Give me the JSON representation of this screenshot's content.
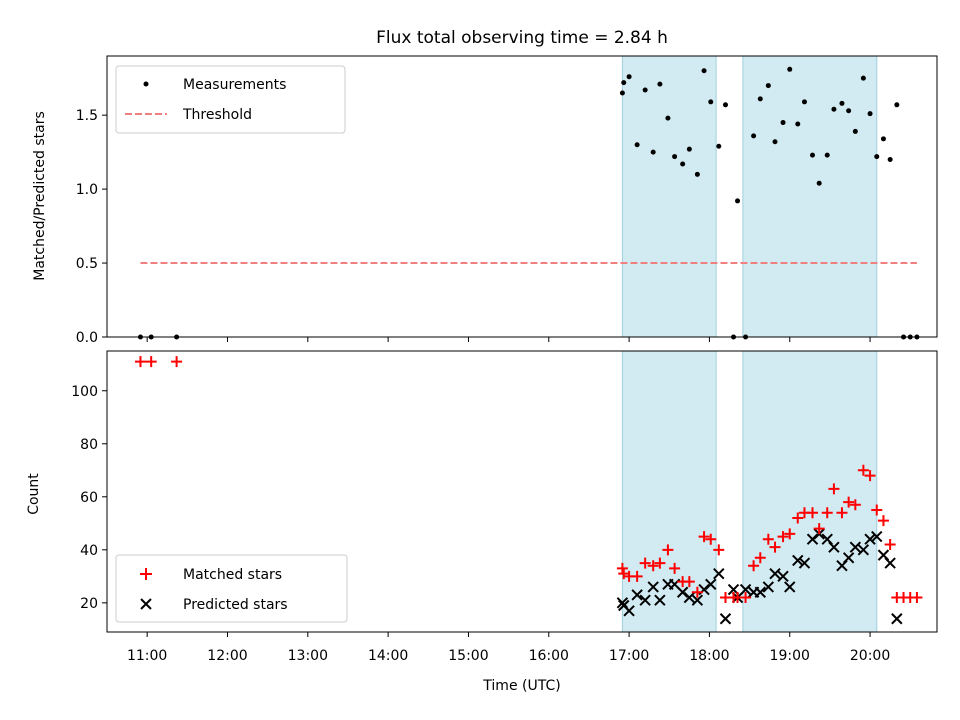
{
  "title": "Flux total observing time = 2.84 h",
  "colors": {
    "measurement": "#000000",
    "threshold": "#f08080",
    "matched": "#ff0000",
    "predicted": "#000000",
    "shade": "#add8e6"
  },
  "chart_data": [
    {
      "type": "scatter",
      "ylabel": "Matched/Predicted stars",
      "xlim": [
        "10:30",
        "20:50"
      ],
      "ylim": [
        0,
        1.9
      ],
      "yticks": [
        0.0,
        0.5,
        1.0,
        1.5
      ],
      "ytick_labels": [
        "0.0",
        "0.5",
        "1.0",
        "1.5"
      ],
      "legend_position": "upper-left",
      "shaded_intervals": [
        [
          "16:55",
          "18:05"
        ],
        [
          "18:25",
          "20:05"
        ]
      ],
      "series": [
        {
          "name": "Measurements",
          "marker": "dot",
          "points": [
            [
              "10:55",
              0.0
            ],
            [
              "11:03",
              0.0
            ],
            [
              "11:22",
              0.0
            ],
            [
              "16:55",
              1.65
            ],
            [
              "16:56",
              1.72
            ],
            [
              "17:00",
              1.76
            ],
            [
              "17:06",
              1.3
            ],
            [
              "17:12",
              1.67
            ],
            [
              "17:18",
              1.25
            ],
            [
              "17:23",
              1.71
            ],
            [
              "17:29",
              1.48
            ],
            [
              "17:34",
              1.22
            ],
            [
              "17:40",
              1.17
            ],
            [
              "17:45",
              1.27
            ],
            [
              "17:51",
              1.1
            ],
            [
              "17:56",
              1.8
            ],
            [
              "18:01",
              1.59
            ],
            [
              "18:07",
              1.29
            ],
            [
              "18:12",
              1.57
            ],
            [
              "18:18",
              0.0
            ],
            [
              "18:21",
              0.92
            ],
            [
              "18:27",
              0.0
            ],
            [
              "18:33",
              1.36
            ],
            [
              "18:38",
              1.61
            ],
            [
              "18:44",
              1.7
            ],
            [
              "18:49",
              1.32
            ],
            [
              "18:55",
              1.45
            ],
            [
              "19:00",
              1.81
            ],
            [
              "19:06",
              1.44
            ],
            [
              "19:11",
              1.59
            ],
            [
              "19:17",
              1.23
            ],
            [
              "19:22",
              1.04
            ],
            [
              "19:28",
              1.23
            ],
            [
              "19:33",
              1.54
            ],
            [
              "19:39",
              1.58
            ],
            [
              "19:44",
              1.53
            ],
            [
              "19:49",
              1.39
            ],
            [
              "19:55",
              1.75
            ],
            [
              "20:00",
              1.51
            ],
            [
              "20:05",
              1.22
            ],
            [
              "20:10",
              1.34
            ],
            [
              "20:15",
              1.2
            ],
            [
              "20:20",
              1.57
            ],
            [
              "20:25",
              0.0
            ],
            [
              "20:30",
              0.0
            ],
            [
              "20:35",
              0.0
            ]
          ]
        },
        {
          "name": "Threshold",
          "line": "dashed",
          "points": [
            [
              "10:55",
              0.5
            ],
            [
              "20:35",
              0.5
            ]
          ]
        }
      ]
    },
    {
      "type": "scatter",
      "xlabel": "Time (UTC)",
      "ylabel": "Count",
      "xlim": [
        "10:30",
        "20:50"
      ],
      "ylim": [
        9,
        115
      ],
      "xticks": [
        "11:00",
        "12:00",
        "13:00",
        "14:00",
        "15:00",
        "16:00",
        "17:00",
        "18:00",
        "19:00",
        "20:00"
      ],
      "yticks": [
        20,
        40,
        60,
        80,
        100
      ],
      "legend_position": "lower-left",
      "shaded_intervals": [
        [
          "16:55",
          "18:05"
        ],
        [
          "18:25",
          "20:05"
        ]
      ],
      "series": [
        {
          "name": "Matched stars",
          "marker": "plus",
          "points": [
            [
              "10:55",
              111
            ],
            [
              "11:03",
              111
            ],
            [
              "11:22",
              111
            ],
            [
              "16:55",
              33
            ],
            [
              "16:56",
              31
            ],
            [
              "17:00",
              30
            ],
            [
              "17:06",
              30
            ],
            [
              "17:12",
              35
            ],
            [
              "17:18",
              34
            ],
            [
              "17:23",
              35
            ],
            [
              "17:29",
              40
            ],
            [
              "17:34",
              33
            ],
            [
              "17:40",
              28
            ],
            [
              "17:45",
              28
            ],
            [
              "17:51",
              24
            ],
            [
              "17:56",
              45
            ],
            [
              "18:01",
              44
            ],
            [
              "18:07",
              40
            ],
            [
              "18:12",
              22
            ],
            [
              "18:18",
              22
            ],
            [
              "18:21",
              22
            ],
            [
              "18:27",
              22
            ],
            [
              "18:33",
              34
            ],
            [
              "18:38",
              37
            ],
            [
              "18:44",
              44
            ],
            [
              "18:49",
              41
            ],
            [
              "18:55",
              45
            ],
            [
              "19:00",
              46
            ],
            [
              "19:06",
              52
            ],
            [
              "19:11",
              54
            ],
            [
              "19:17",
              54
            ],
            [
              "19:22",
              48
            ],
            [
              "19:28",
              54
            ],
            [
              "19:33",
              63
            ],
            [
              "19:39",
              54
            ],
            [
              "19:44",
              58
            ],
            [
              "19:49",
              57
            ],
            [
              "19:55",
              70
            ],
            [
              "20:00",
              68
            ],
            [
              "20:05",
              55
            ],
            [
              "20:10",
              51
            ],
            [
              "20:15",
              42
            ],
            [
              "20:20",
              22
            ],
            [
              "20:25",
              22
            ],
            [
              "20:30",
              22
            ],
            [
              "20:35",
              22
            ]
          ]
        },
        {
          "name": "Predicted stars",
          "marker": "x",
          "points": [
            [
              "16:55",
              20
            ],
            [
              "16:56",
              19
            ],
            [
              "17:00",
              17
            ],
            [
              "17:06",
              23
            ],
            [
              "17:12",
              21
            ],
            [
              "17:18",
              26
            ],
            [
              "17:23",
              21
            ],
            [
              "17:29",
              27
            ],
            [
              "17:34",
              27
            ],
            [
              "17:40",
              24
            ],
            [
              "17:45",
              22
            ],
            [
              "17:51",
              21
            ],
            [
              "17:56",
              25
            ],
            [
              "18:01",
              27
            ],
            [
              "18:07",
              31
            ],
            [
              "18:12",
              14
            ],
            [
              "18:18",
              25
            ],
            [
              "18:21",
              22
            ],
            [
              "18:27",
              25
            ],
            [
              "18:33",
              24
            ],
            [
              "18:38",
              24
            ],
            [
              "18:44",
              26
            ],
            [
              "18:49",
              31
            ],
            [
              "18:55",
              30
            ],
            [
              "19:00",
              26
            ],
            [
              "19:06",
              36
            ],
            [
              "19:11",
              35
            ],
            [
              "19:17",
              44
            ],
            [
              "19:22",
              46
            ],
            [
              "19:28",
              44
            ],
            [
              "19:33",
              41
            ],
            [
              "19:39",
              34
            ],
            [
              "19:44",
              37
            ],
            [
              "19:49",
              41
            ],
            [
              "19:55",
              40
            ],
            [
              "20:00",
              44
            ],
            [
              "20:05",
              45
            ],
            [
              "20:10",
              38
            ],
            [
              "20:15",
              35
            ],
            [
              "20:20",
              14
            ]
          ]
        }
      ]
    }
  ]
}
